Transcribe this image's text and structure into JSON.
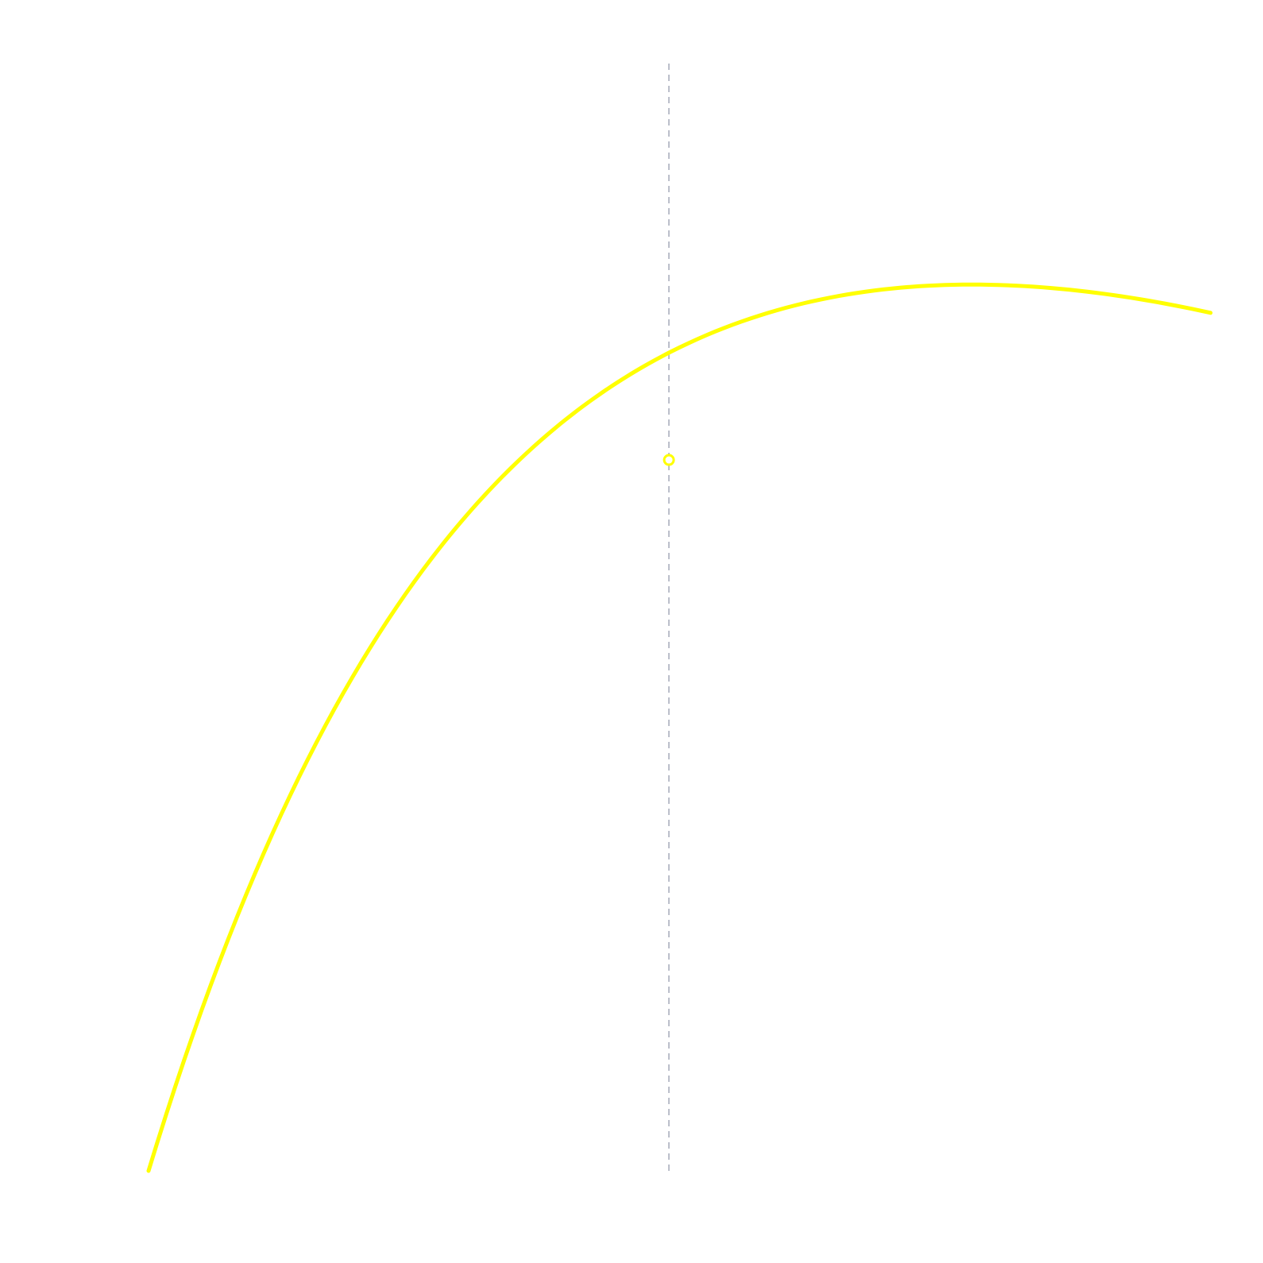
{
  "chart_data": {
    "type": "line",
    "title": "",
    "xlabel": "",
    "ylabel": "",
    "grid": false,
    "legend": "none",
    "xlim": [
      0,
      1
    ],
    "ylim": [
      0,
      1
    ],
    "series": [
      {
        "color": "#ffff00",
        "x": [
          0,
          0.05,
          0.1,
          0.15,
          0.2,
          0.25,
          0.3,
          0.35,
          0.4,
          0.45,
          0.49,
          0.55,
          0.6,
          0.65,
          0.7,
          0.75,
          0.8,
          0.85,
          0.9,
          0.95,
          1
        ],
        "y": [
          0,
          0.124,
          0.236,
          0.335,
          0.422,
          0.494,
          0.556,
          0.607,
          0.65,
          0.688,
          0.642,
          0.676,
          0.701,
          0.724,
          0.746,
          0.766,
          0.785,
          0.803,
          0.821,
          0.838,
          0.8
        ]
      }
    ],
    "marker": {
      "x": 0.49,
      "y": 0.642,
      "style": "hollow-circle",
      "color": "#ffff00"
    },
    "reference_line": {
      "orientation": "vertical",
      "x": 0.49,
      "style": "dashed",
      "color": "#b8bcc8"
    }
  }
}
